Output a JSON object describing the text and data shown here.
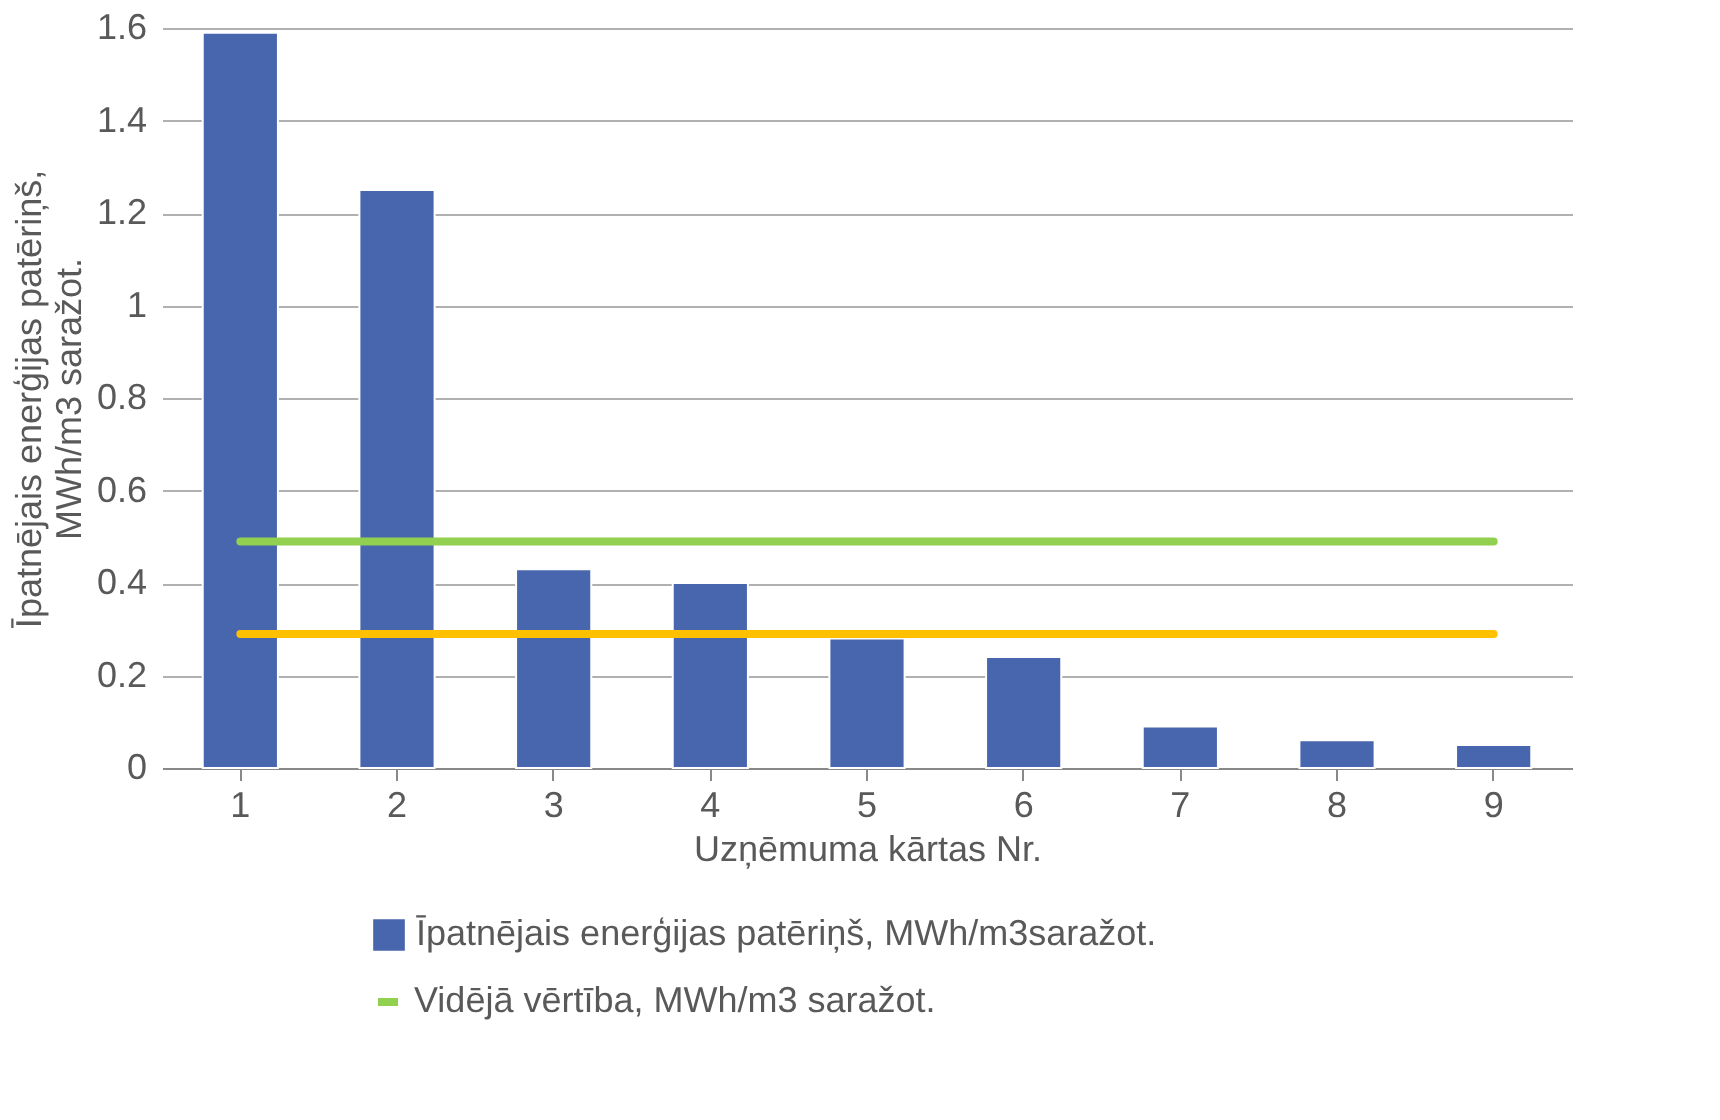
{
  "chart_data": {
    "type": "bar",
    "xlabel": "Uzņēmuma kārtas Nr.",
    "ylabel": "Īpatnējais enerģijas patēriņš, MWh/m3 saražot.",
    "categories": [
      "1",
      "2",
      "3",
      "4",
      "5",
      "6",
      "7",
      "8",
      "9"
    ],
    "series": [
      {
        "name": "Īpatnējais enerģijas patēriņš, MWh/m3saražot.",
        "color": "#4866ad",
        "values": [
          1.59,
          1.25,
          0.43,
          0.4,
          0.28,
          0.24,
          0.09,
          0.06,
          0.05
        ]
      },
      {
        "type": "line",
        "name": "Vidējā vērtība, MWh/m3 saražot.",
        "color": "#92d050",
        "values": [
          0.49,
          0.49,
          0.49,
          0.49,
          0.49,
          0.49,
          0.49,
          0.49,
          0.49
        ]
      },
      {
        "type": "line",
        "color": "#ffc000",
        "values": [
          0.29,
          0.29,
          0.29,
          0.29,
          0.29,
          0.29,
          0.29,
          0.29,
          0.29
        ]
      }
    ],
    "ylim": [
      0,
      1.6
    ],
    "yticks": [
      0,
      0.2,
      0.4,
      0.6,
      0.8,
      1,
      1.2,
      1.4,
      1.6
    ],
    "grid": "y",
    "legend": "bottom"
  }
}
